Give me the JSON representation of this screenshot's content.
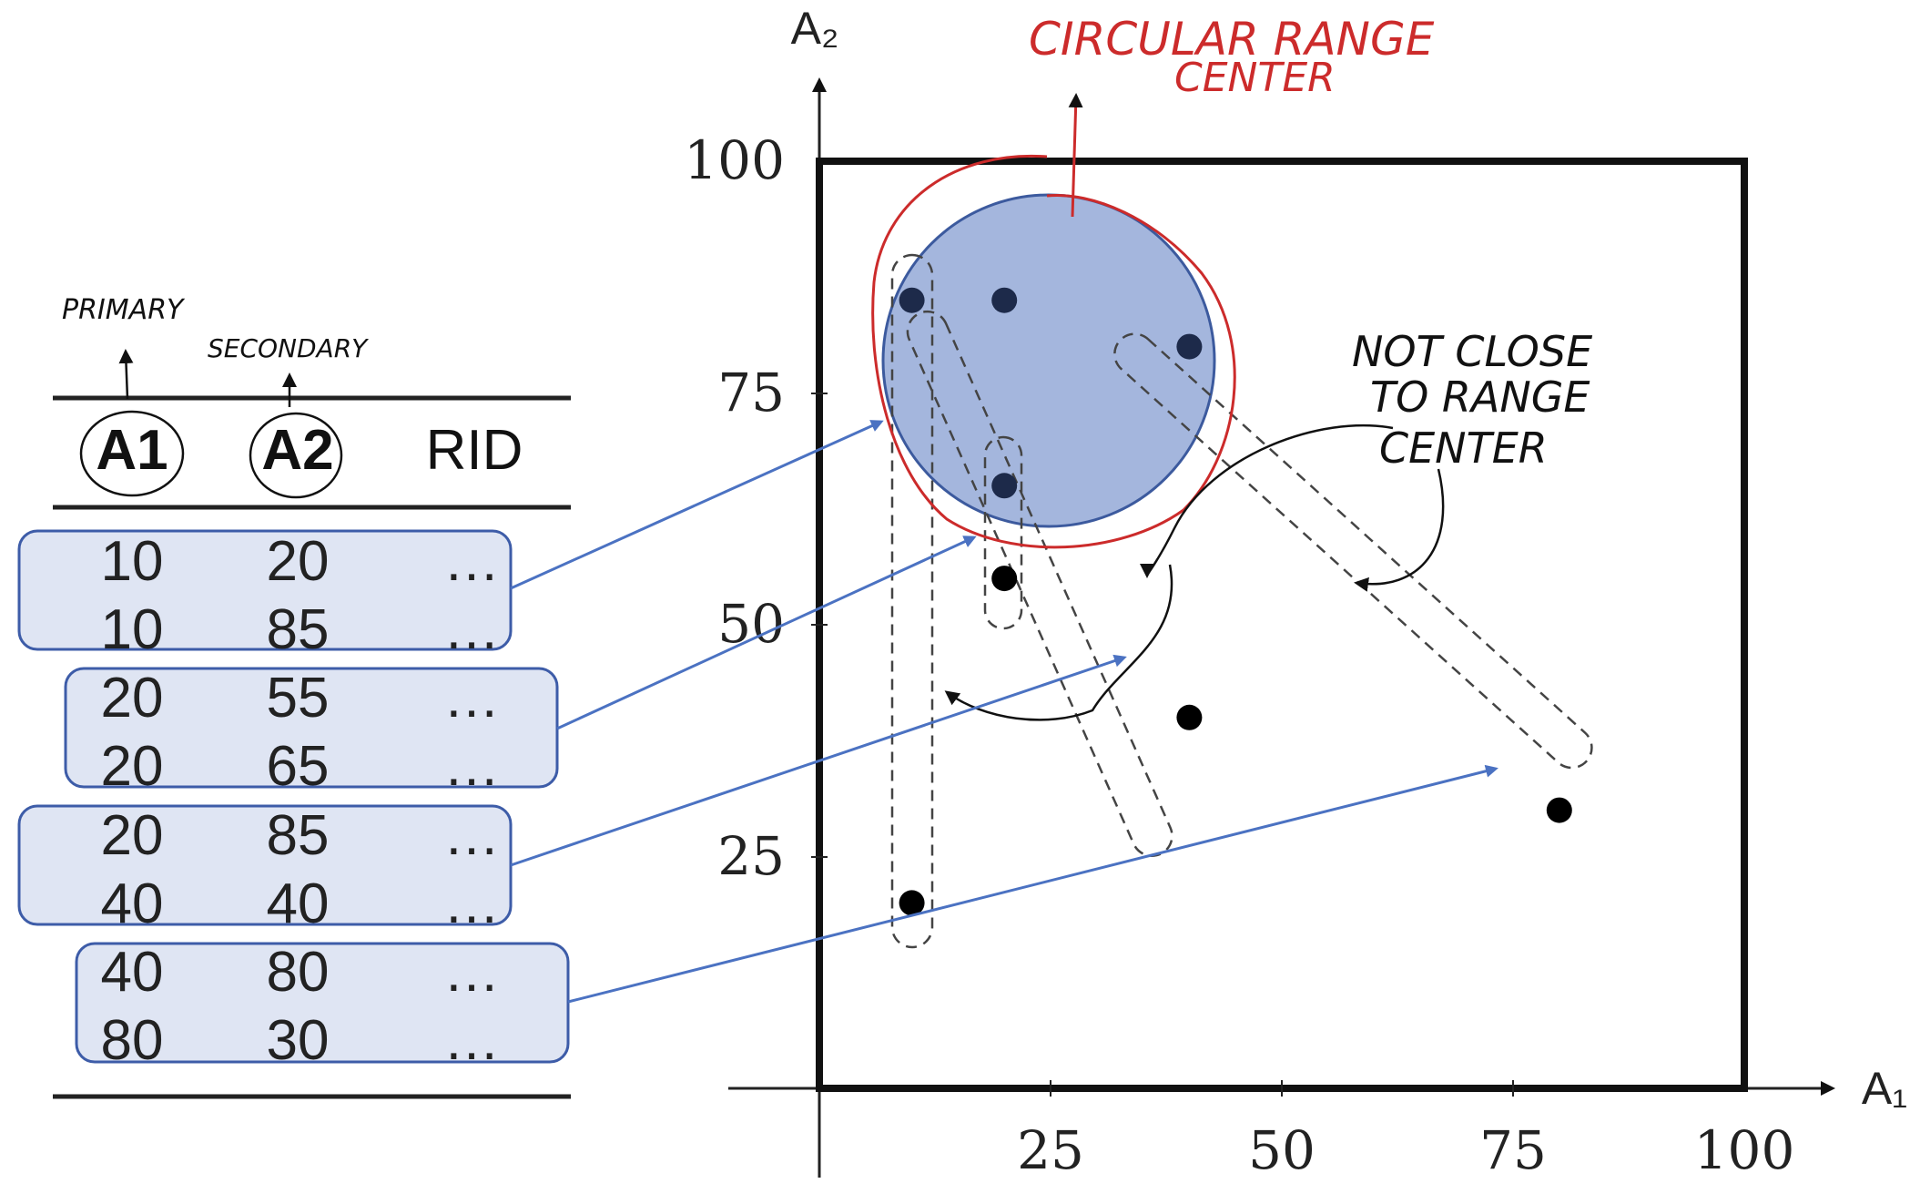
{
  "table": {
    "header": [
      "A1",
      "A2",
      "RID"
    ],
    "header_annotations": {
      "a1": "PRIMARY",
      "a2": "SECONDARY"
    },
    "groups": [
      {
        "rows": [
          {
            "a1": "10",
            "a2": "20",
            "rid": "…"
          },
          {
            "a1": "10",
            "a2": "85",
            "rid": "…"
          }
        ]
      },
      {
        "rows": [
          {
            "a1": "20",
            "a2": "55",
            "rid": "…"
          },
          {
            "a1": "20",
            "a2": "65",
            "rid": "…"
          }
        ]
      },
      {
        "rows": [
          {
            "a1": "20",
            "a2": "85",
            "rid": "…"
          },
          {
            "a1": "40",
            "a2": "40",
            "rid": "…"
          }
        ]
      },
      {
        "rows": [
          {
            "a1": "40",
            "a2": "80",
            "rid": "…"
          },
          {
            "a1": "80",
            "a2": "30",
            "rid": "…"
          }
        ]
      }
    ]
  },
  "plot": {
    "x_axis_label": "A₁",
    "y_axis_label": "A₂",
    "x_ticks": [
      "25",
      "50",
      "75",
      "100"
    ],
    "y_ticks": [
      "25",
      "50",
      "75",
      "100"
    ],
    "points": [
      {
        "a1": 10,
        "a2": 85
      },
      {
        "a1": 20,
        "a2": 85
      },
      {
        "a1": 40,
        "a2": 80
      },
      {
        "a1": 20,
        "a2": 65
      },
      {
        "a1": 20,
        "a2": 55
      },
      {
        "a1": 40,
        "a2": 40
      },
      {
        "a1": 80,
        "a2": 30
      },
      {
        "a1": 10,
        "a2": 20
      }
    ]
  },
  "annotations": {
    "circular": "CIRCULAR RANGE",
    "circular_line2": "CENTER",
    "not_close_1": "NOT CLOSE",
    "not_close_2": "TO RANGE",
    "not_close_3": "CENTER"
  },
  "colors": {
    "query_circle_fill": "#a4b6dd",
    "query_circle_stroke": "#3c5a9e",
    "box_fill": "#dfe5f3",
    "box_stroke": "#3d5ca8",
    "arrow": "#4b72c2",
    "red_annotation": "#cc2b2b",
    "point": "#000000"
  }
}
